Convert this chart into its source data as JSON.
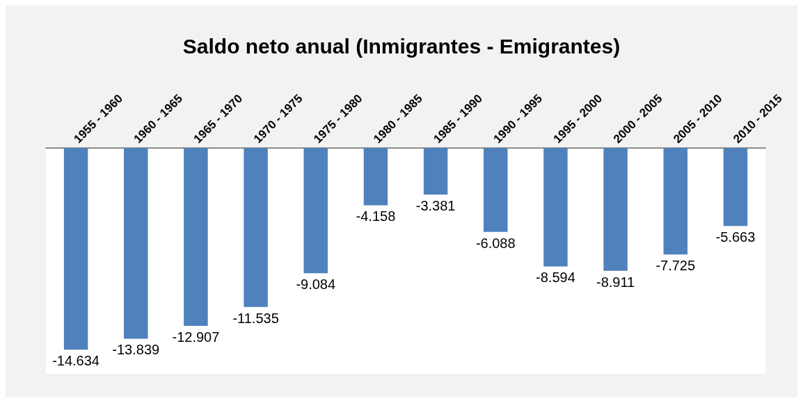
{
  "chart_data": {
    "type": "bar",
    "title": "Saldo neto anual (Inmigrantes - Emigrantes)",
    "categories": [
      "1955 - 1960",
      "1960 - 1965",
      "1965 - 1970",
      "1970 - 1975",
      "1975 - 1980",
      "1980 - 1985",
      "1985 - 1990",
      "1990 - 1995",
      "1995 - 2000",
      "2000 - 2005",
      "2005 - 2010",
      "2010 - 2015"
    ],
    "values": [
      -14.634,
      -13.839,
      -12.907,
      -11.535,
      -9.084,
      -4.158,
      -3.381,
      -6.088,
      -8.594,
      -8.911,
      -7.725,
      -5.663
    ],
    "color": "#4f81bd",
    "data_labels": true
  }
}
